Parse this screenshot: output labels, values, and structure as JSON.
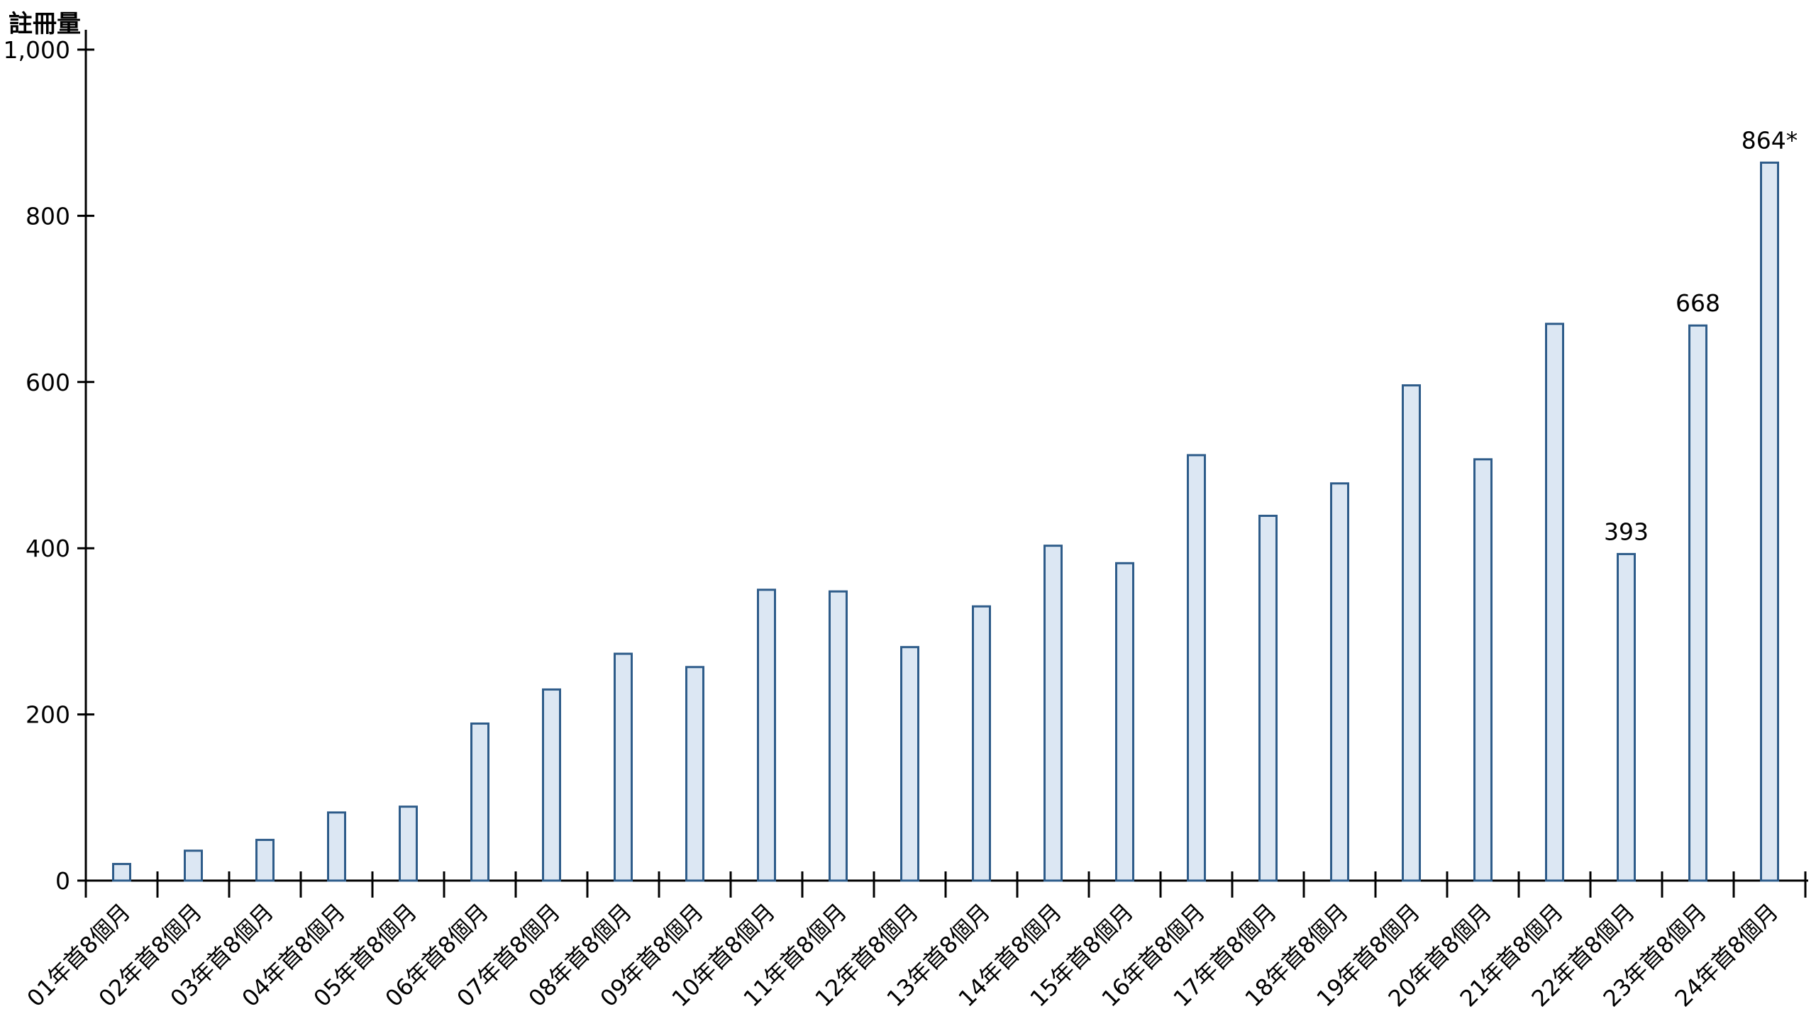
{
  "chart_data": {
    "type": "bar",
    "title": "",
    "ylabel": "註冊量",
    "xlabel": "",
    "ylim": [
      0,
      1000
    ],
    "yticks": [
      0,
      200,
      400,
      600,
      800,
      1000
    ],
    "ytick_labels": [
      "0",
      "200",
      "400",
      "600",
      "800",
      "1,000"
    ],
    "grid": "off",
    "legend": "none",
    "categories": [
      "01年首8個月",
      "02年首8個月",
      "03年首8個月",
      "04年首8個月",
      "05年首8個月",
      "06年首8個月",
      "07年首8個月",
      "08年首8個月",
      "09年首8個月",
      "10年首8個月",
      "11年首8個月",
      "12年首8個月",
      "13年首8個月",
      "14年首8個月",
      "15年首8個月",
      "16年首8個月",
      "17年首8個月",
      "18年首8個月",
      "19年首8個月",
      "20年首8個月",
      "21年首8個月",
      "22年首8個月",
      "23年首8個月",
      "24年首8個月"
    ],
    "values": [
      20,
      36,
      49,
      82,
      89,
      189,
      230,
      273,
      257,
      350,
      348,
      281,
      330,
      403,
      382,
      512,
      439,
      478,
      596,
      507,
      670,
      393,
      668,
      864
    ],
    "point_labels": [
      "",
      "",
      "",
      "",
      "",
      "",
      "",
      "",
      "",
      "",
      "",
      "",
      "",
      "",
      "",
      "",
      "",
      "",
      "",
      "",
      "",
      "393",
      "668",
      "864*"
    ],
    "colors": {
      "bar_fill": "#dce7f3",
      "bar_border": "#2e5c8a",
      "axis": "#000000",
      "text": "#000000",
      "background": "#ffffff"
    }
  }
}
